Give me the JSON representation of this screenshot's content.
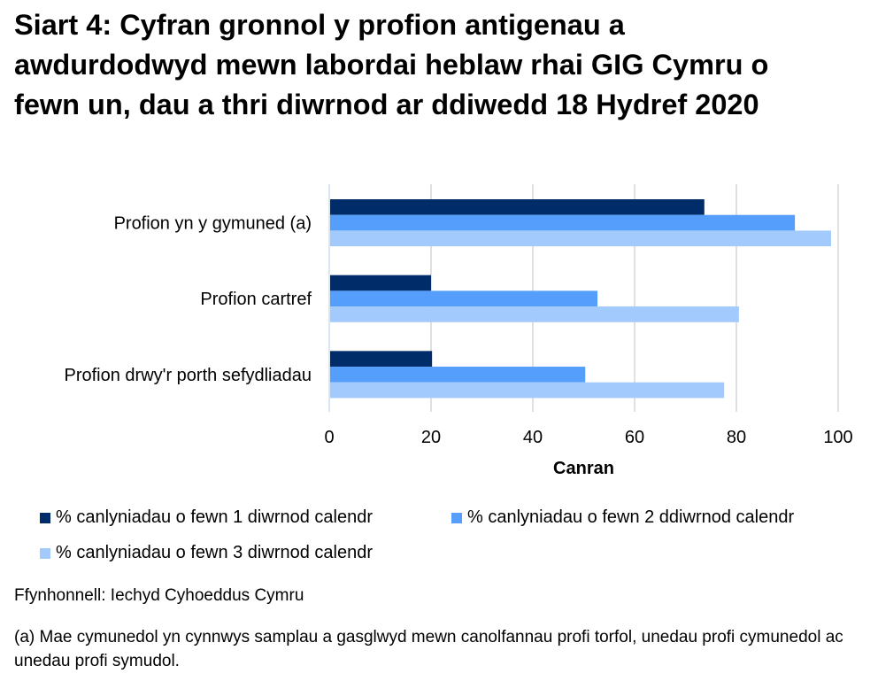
{
  "title": "Siart 4: Cyfran gronnol y profion antigenau a awdurdodwyd mewn labordai heblaw rhai GIG Cymru o fewn un, dau a thri diwrnod ar ddiwedd 18 Hydref 2020",
  "source": "Ffynhonnell: Iechyd Cyhoeddus Cymru",
  "footnote": "(a) Mae cymunedol yn cynnwys samplau a gasglwyd mewn canolfannau profi torfol, unedau profi cymunedol ac unedau profi symudol.",
  "chart_data": {
    "type": "bar",
    "orientation": "horizontal",
    "title": "Siart 4: Cyfran gronnol y profion antigenau a awdurdodwyd mewn labordai heblaw rhai GIG Cymru o fewn un, dau a thri diwrnod ar ddiwedd 18 Hydref 2020",
    "categories": [
      "Profion yn y gymuned (a)",
      "Profion cartref",
      "Profion drwy'r porth sefydliadau"
    ],
    "series": [
      {
        "name": "% canlyniadau o fewn 1 diwrnod calendr",
        "color": "#002D6A",
        "values": [
          73.7,
          20.0,
          20.2
        ]
      },
      {
        "name": "% canlyniadau o fewn 2 ddiwrnod calendr",
        "color": "#559EFB",
        "values": [
          91.5,
          52.7,
          50.3
        ]
      },
      {
        "name": "% canlyniadau o fewn 3 diwrnod calendr",
        "color": "#A2CAFC",
        "values": [
          98.6,
          80.5,
          77.6
        ]
      }
    ],
    "xlabel": "Canran",
    "ylabel": "",
    "xlim": [
      0,
      100
    ],
    "xticks": [
      "0",
      "20",
      "40",
      "60",
      "80",
      "100"
    ],
    "grid": true,
    "legend_position": "bottom"
  }
}
